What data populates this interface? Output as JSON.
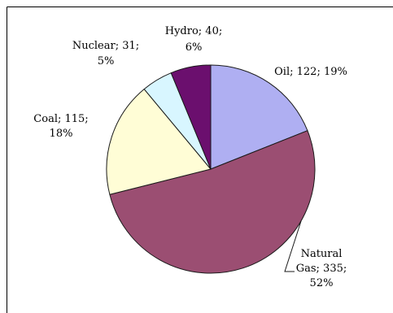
{
  "chart_data": {
    "type": "pie",
    "title": "",
    "slices": [
      {
        "name": "Oil",
        "value": 122,
        "percent": "19%",
        "label_line1": "Oil; 122; 19%",
        "label_line2": "",
        "color": "#AFAFF2"
      },
      {
        "name": "Natural Gas",
        "value": 335,
        "percent": "52%",
        "label_line1": "Natural",
        "label_line2": "Gas; 335;",
        "label_line3": "52%",
        "color": "#9B4E72"
      },
      {
        "name": "Coal",
        "value": 115,
        "percent": "18%",
        "label_line1": "Coal; 115;",
        "label_line2": "18%",
        "color": "#FFFDD6"
      },
      {
        "name": "Nuclear",
        "value": 31,
        "percent": "5%",
        "label_line1": "Nuclear; 31;",
        "label_line2": "5%",
        "color": "#D8F6FF"
      },
      {
        "name": "Hydro",
        "value": 40,
        "percent": "6%",
        "label_line1": "Hydro; 40;",
        "label_line2": "6%",
        "color": "#6B0F6E"
      }
    ]
  },
  "colors": {
    "frame": "#000000",
    "slice_stroke": "#1A1A1A",
    "leader": "#1A1A1A"
  }
}
